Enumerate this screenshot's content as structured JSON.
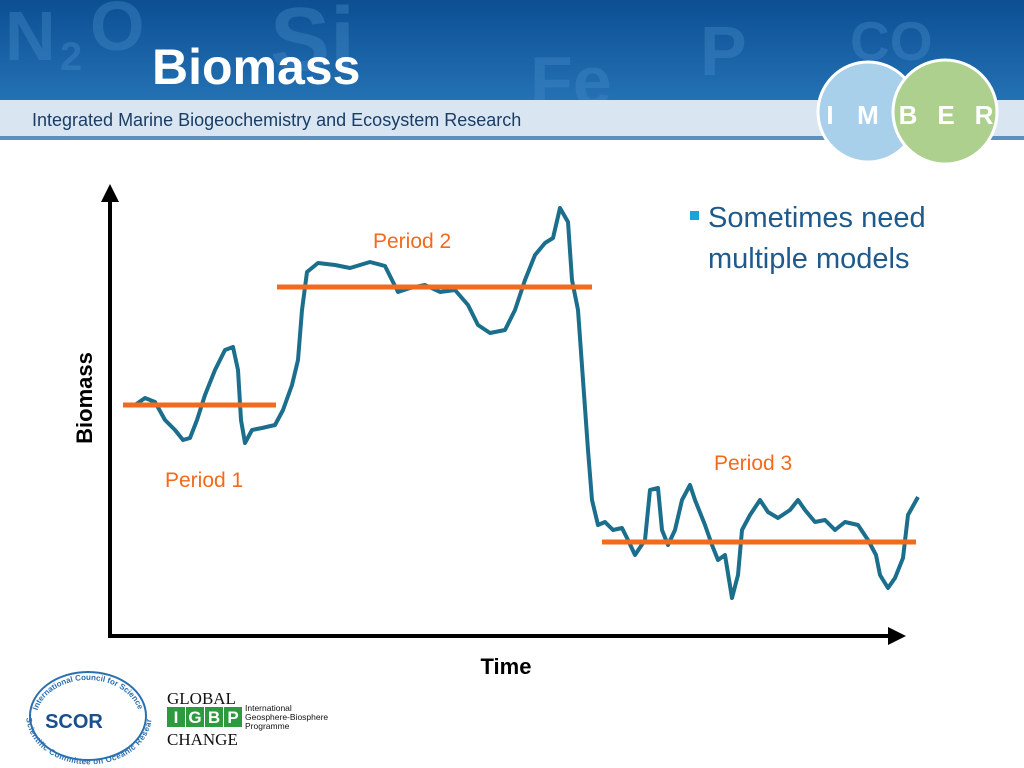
{
  "header": {
    "title": "Biomass",
    "subtitle": "Integrated Marine Biogeochemistry and Ecosystem Research",
    "logo": [
      "I",
      "M",
      "B",
      "E",
      "R"
    ]
  },
  "bullets": [
    "Sometimes need multiple models"
  ],
  "diagram": {
    "y_label": "Biomass",
    "x_label": "Time",
    "periods": [
      "Period 1",
      "Period 2",
      "Period 3"
    ]
  },
  "footer": {
    "scor": {
      "name": "SCOR",
      "top": "International Council for Science",
      "bottom": "Scientific Committee on Oceanic Research"
    },
    "igbp": {
      "global": "GLOBAL",
      "letters": [
        "I",
        "G",
        "B",
        "P"
      ],
      "change": "CHANGE",
      "full": [
        "International",
        "Geosphere-Biosphere",
        "Programme"
      ]
    }
  }
}
